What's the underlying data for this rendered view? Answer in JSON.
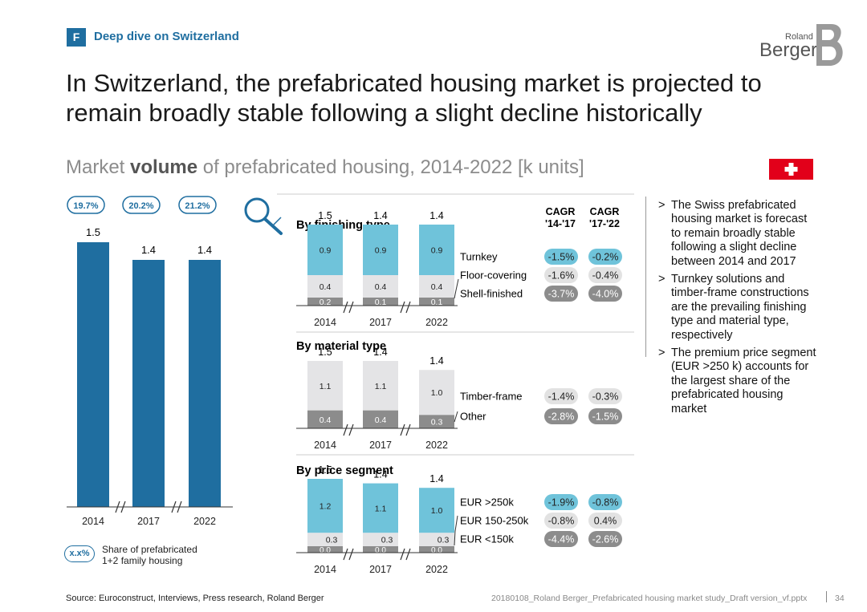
{
  "header": {
    "section_letter": "F",
    "section_title": "Deep dive on Switzerland",
    "logo_top": "Roland",
    "logo_bottom": "Berger"
  },
  "headline": "In Switzerland, the prefabricated housing market is projected to remain broadly stable following a slight decline historically",
  "subtitle": {
    "part1": "Market ",
    "bold": "volume",
    "part2": " of prefabricated housing, 2014-2022 [k units]"
  },
  "colors": {
    "brand_blue": "#1F6EA0",
    "light_blue": "#6FC3DA",
    "light_grey": "#E4E4E6",
    "dark_grey": "#8C8C8C",
    "pill_grey": "#E2E2E2",
    "pill_dark": "#8C8C8C",
    "flag_red": "#E2001A"
  },
  "chart_data": [
    {
      "type": "bar",
      "title": "Market volume of prefabricated housing, 2014-2022 [k units]",
      "categories": [
        "2014",
        "2017",
        "2022"
      ],
      "values": [
        1.5,
        1.4,
        1.4
      ],
      "value_labels": [
        "1.5",
        "1.4",
        "1.4"
      ],
      "share_labels": [
        "19.7%",
        "20.2%",
        "21.2%"
      ],
      "ylim": [
        0,
        1.55
      ]
    },
    {
      "type": "bar",
      "title": "By finishing type",
      "categories": [
        "2014",
        "2017",
        "2022"
      ],
      "totals": [
        "1.5",
        "1.4",
        "1.4"
      ],
      "series": [
        {
          "name": "Shell-finished",
          "values": [
            0.2,
            0.1,
            0.1
          ],
          "labels": [
            "0.2",
            "0.1",
            "0.1"
          ],
          "cagr_14_17": "-3.7%",
          "cagr_17_22": "-4.0%"
        },
        {
          "name": "Floor-covering",
          "values": [
            0.4,
            0.4,
            0.4
          ],
          "labels": [
            "0.4",
            "0.4",
            "0.4"
          ],
          "cagr_14_17": "-1.6%",
          "cagr_17_22": "-0.4%"
        },
        {
          "name": "Turnkey",
          "values": [
            0.9,
            0.9,
            0.9
          ],
          "labels": [
            "0.9",
            "0.9",
            "0.9"
          ],
          "cagr_14_17": "-1.5%",
          "cagr_17_22": "-0.2%"
        }
      ]
    },
    {
      "type": "bar",
      "title": "By material type",
      "categories": [
        "2014",
        "2017",
        "2022"
      ],
      "totals": [
        "1.5",
        "1.4",
        "1.4"
      ],
      "series": [
        {
          "name": "Other",
          "values": [
            0.4,
            0.4,
            0.3
          ],
          "labels": [
            "0.4",
            "0.4",
            "0.3"
          ],
          "cagr_14_17": "-2.8%",
          "cagr_17_22": "-1.5%"
        },
        {
          "name": "Timber-frame",
          "values": [
            1.1,
            1.1,
            1.0
          ],
          "labels": [
            "1.1",
            "1.1",
            "1.0"
          ],
          "cagr_14_17": "-1.4%",
          "cagr_17_22": "-0.3%"
        }
      ]
    },
    {
      "type": "bar",
      "title": "By price segment",
      "categories": [
        "2014",
        "2017",
        "2022"
      ],
      "totals": [
        "1.5",
        "1.4",
        "1.4"
      ],
      "series": [
        {
          "name": "EUR <150k",
          "values": [
            0.0,
            0.0,
            0.0
          ],
          "labels": [
            "0.0",
            "0.0",
            "0.0"
          ],
          "cagr_14_17": "-4.4%",
          "cagr_17_22": "-2.6%"
        },
        {
          "name": "EUR 150-250k",
          "values": [
            0.3,
            0.3,
            0.3
          ],
          "labels": [
            "0.3",
            "0.3",
            "0.3"
          ],
          "cagr_14_17": "-0.8%",
          "cagr_17_22": "0.4%"
        },
        {
          "name": "EUR >250k",
          "values": [
            1.2,
            1.1,
            1.0
          ],
          "labels": [
            "1.2",
            "1.1",
            "1.0"
          ],
          "cagr_14_17": "-1.9%",
          "cagr_17_22": "-0.8%"
        }
      ]
    }
  ],
  "cagr_headers": {
    "col1": "CAGR",
    "col1_period": "'14-'17",
    "col2": "CAGR",
    "col2_period": "'17-'22"
  },
  "legend": {
    "pill": "x.x%",
    "text": "Share of prefabricated 1+2 family housing"
  },
  "bullets": [
    "The Swiss prefabricated housing market is forecast to remain broadly stable following a slight decline between 2014 and 2017",
    "Turnkey solutions and timber-frame constructions are the prevailing finishing type and material type, respectively",
    "The premium price segment (EUR >250 k) accounts for the largest share of the prefabricated housing market"
  ],
  "footer": {
    "source": "Source: Euroconstruct, Interviews, Press research, Roland Berger",
    "file": "20180108_Roland Berger_Prefabricated housing market study_Draft version_vf.pptx",
    "page": "34"
  }
}
